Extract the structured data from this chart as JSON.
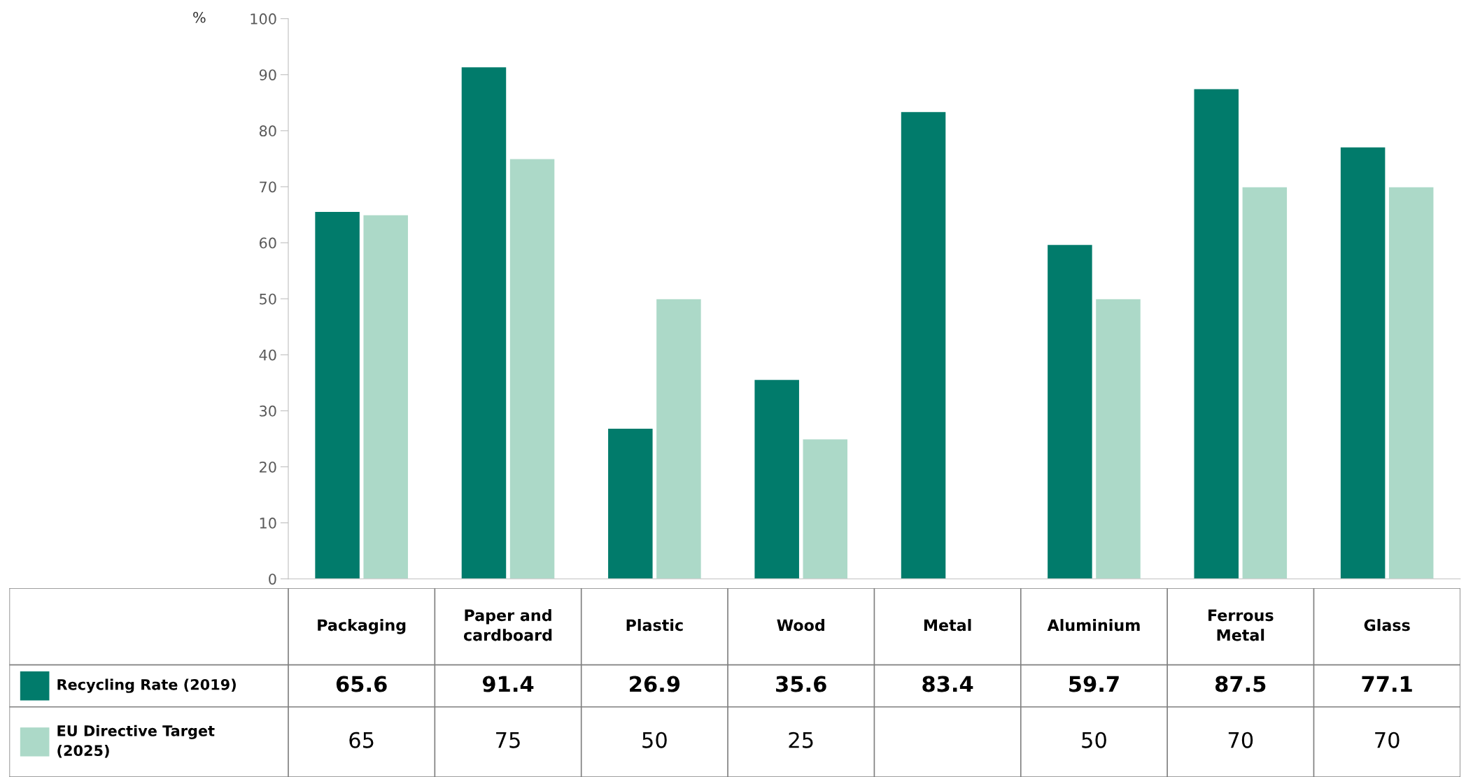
{
  "chart_data": {
    "type": "bar",
    "ylabel": "%",
    "categories": [
      "Packaging",
      "Paper and cardboard",
      "Plastic",
      "Wood",
      "Metal",
      "Aluminium",
      "Ferrous Metal",
      "Glass"
    ],
    "series": [
      {
        "name": "Recycling Rate (2019)",
        "color": "#017b6b",
        "values": [
          65.6,
          91.4,
          26.9,
          35.6,
          83.4,
          59.7,
          87.5,
          77.1
        ]
      },
      {
        "name": "EU Directive Target (2025)",
        "color": "#acd9c8",
        "values": [
          65,
          75,
          50,
          25,
          null,
          50,
          70,
          70
        ]
      }
    ],
    "ylim": [
      0,
      100
    ],
    "yticks": [
      0,
      10,
      20,
      30,
      40,
      50,
      60,
      70,
      80,
      90,
      100
    ],
    "grid": false,
    "legend": "bottom",
    "data_labels": true
  }
}
